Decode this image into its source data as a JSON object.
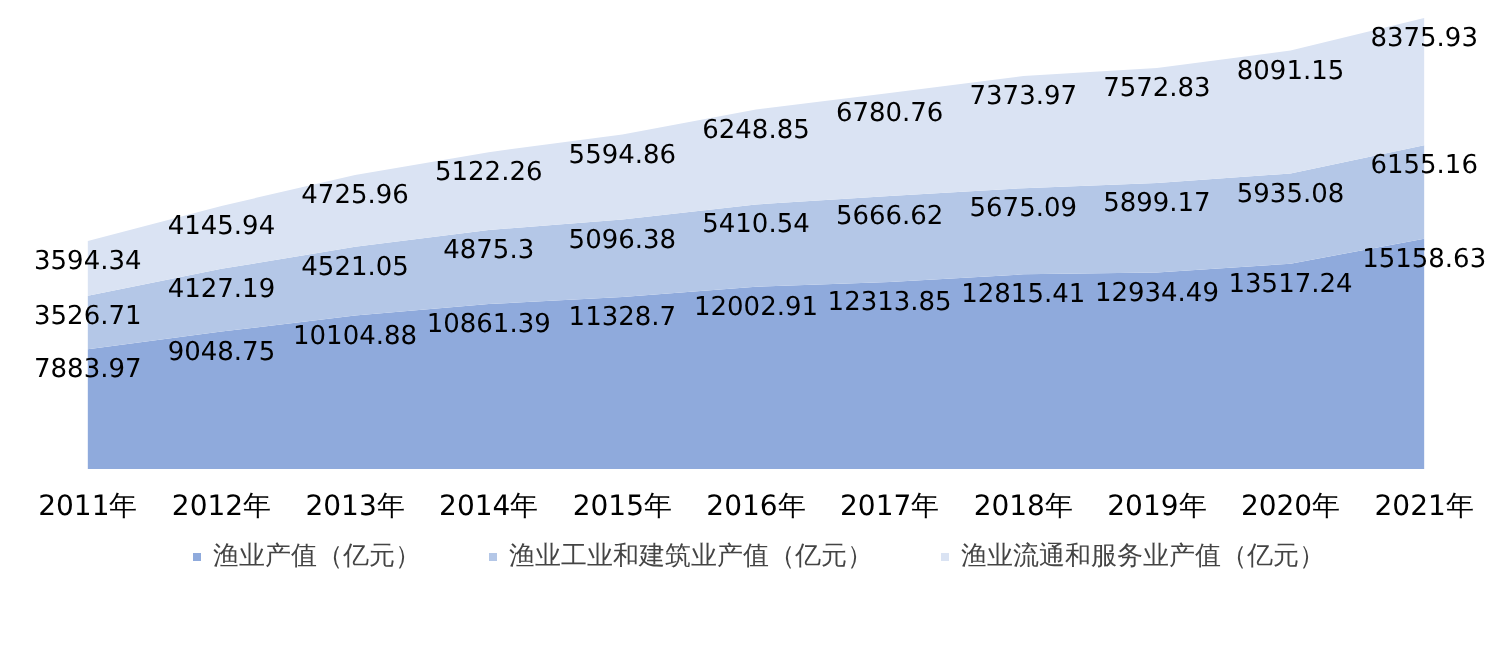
{
  "chart_data": {
    "type": "area",
    "stacked": true,
    "data_labels": true,
    "legend": "bottom",
    "grid": false,
    "categories": [
      "2011年",
      "2012年",
      "2013年",
      "2014年",
      "2015年",
      "2016年",
      "2017年",
      "2018年",
      "2019年",
      "2020年",
      "2021年"
    ],
    "series": [
      {
        "name": "渔业产值（亿元）",
        "color": "#8faadc",
        "values": [
          7883.97,
          9048.75,
          10104.88,
          10861.39,
          11328.7,
          12002.91,
          12313.85,
          12815.41,
          12934.49,
          13517.24,
          15158.63
        ]
      },
      {
        "name": "渔业工业和建筑业产值（亿元）",
        "color": "#b4c7e7",
        "values": [
          3526.71,
          4127.19,
          4521.05,
          4875.3,
          5096.38,
          5410.54,
          5666.62,
          5675.09,
          5899.17,
          5935.08,
          6155.16
        ]
      },
      {
        "name": "渔业流通和服务业产值（亿元）",
        "color": "#dae3f3",
        "values": [
          3594.34,
          4145.94,
          4725.96,
          5122.26,
          5594.86,
          6248.85,
          6780.76,
          7373.97,
          7572.83,
          8091.15,
          8375.93
        ]
      }
    ]
  }
}
